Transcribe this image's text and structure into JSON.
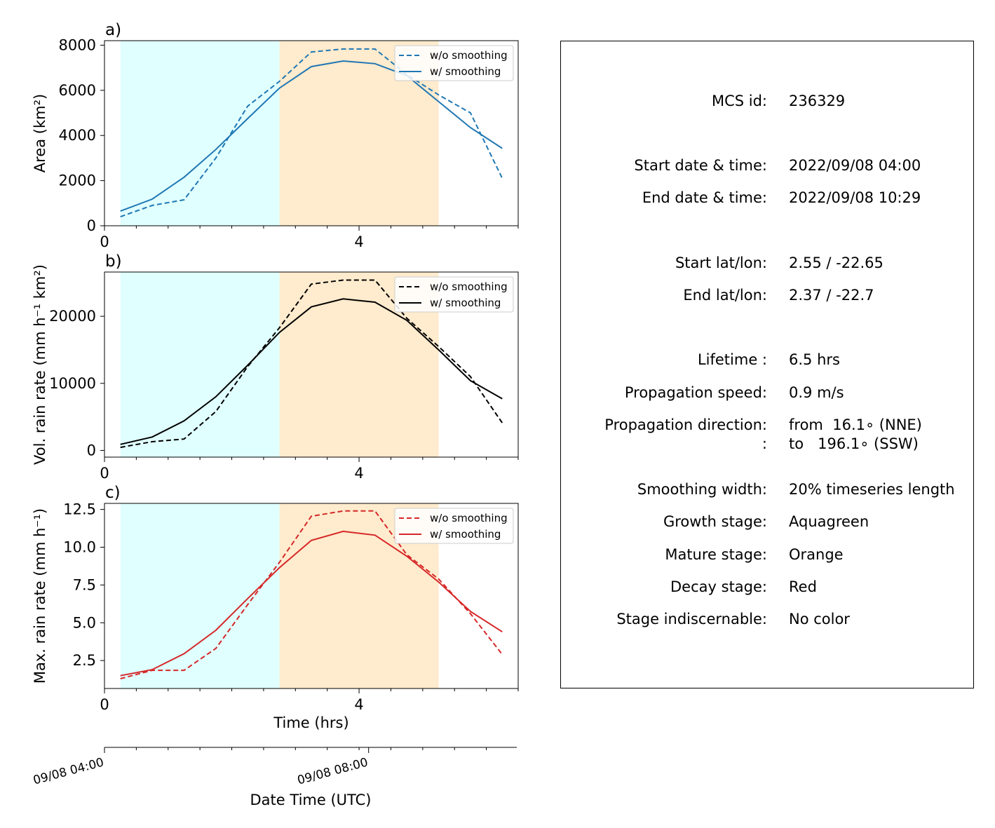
{
  "chart_data": [
    {
      "type": "line",
      "panel_label": "a)",
      "ylabel": "Area  (km²)",
      "xlim": [
        0,
        6.5
      ],
      "ylim": [
        0,
        8200
      ],
      "yticks": [
        0,
        2000,
        4000,
        6000,
        8000
      ],
      "xticks": [
        0,
        4
      ],
      "x": [
        0.25,
        0.75,
        1.25,
        1.75,
        2.25,
        2.75,
        3.25,
        3.75,
        4.25,
        4.75,
        5.25,
        5.75,
        6.25
      ],
      "series": [
        {
          "name": "w/o smoothing",
          "style": "dashed",
          "color": "#1f77b4",
          "values": [
            400,
            900,
            1150,
            3000,
            5300,
            6400,
            7700,
            7830,
            7830,
            6700,
            5800,
            5000,
            2100
          ]
        },
        {
          "name": "w/ smoothing",
          "style": "solid",
          "color": "#1f77b4",
          "values": [
            650,
            1180,
            2150,
            3380,
            4750,
            6100,
            7050,
            7300,
            7180,
            6650,
            5500,
            4350,
            3430
          ]
        }
      ],
      "stages": [
        {
          "name": "growth",
          "x0": 0.25,
          "x1": 2.75,
          "color": "#e0ffff"
        },
        {
          "name": "mature",
          "x0": 2.75,
          "x1": 5.25,
          "color": "#ffebcd"
        }
      ],
      "legend": "top-right"
    },
    {
      "type": "line",
      "panel_label": "b)",
      "ylabel": "Vol. rain rate (mm h⁻¹ km²)",
      "xlim": [
        0,
        6.5
      ],
      "ylim": [
        -1000,
        26600
      ],
      "yticks": [
        0,
        10000,
        20000
      ],
      "xticks": [
        0,
        4
      ],
      "x": [
        0.25,
        0.75,
        1.25,
        1.75,
        2.25,
        2.75,
        3.25,
        3.75,
        4.25,
        4.75,
        5.25,
        5.75,
        6.25
      ],
      "series": [
        {
          "name": "w/o smoothing",
          "style": "dashed",
          "color": "#000000",
          "values": [
            450,
            1300,
            1700,
            5800,
            12500,
            18300,
            24800,
            25400,
            25400,
            19700,
            15500,
            11000,
            4100
          ]
        },
        {
          "name": "w/ smoothing",
          "style": "solid",
          "color": "#000000",
          "values": [
            900,
            2000,
            4400,
            8000,
            12700,
            17600,
            21400,
            22600,
            22100,
            19400,
            15000,
            10400,
            7700
          ]
        }
      ],
      "stages": [
        {
          "name": "growth",
          "x0": 0.25,
          "x1": 2.75,
          "color": "#e0ffff"
        },
        {
          "name": "mature",
          "x0": 2.75,
          "x1": 5.25,
          "color": "#ffebcd"
        }
      ],
      "legend": "top-right"
    },
    {
      "type": "line",
      "panel_label": "c)",
      "ylabel": "Max. rain rate  (mm h⁻¹)",
      "xlabel": "Time (hrs)",
      "xlim": [
        0,
        6.5
      ],
      "ylim": [
        0.65,
        12.9
      ],
      "yticks": [
        2.5,
        5.0,
        7.5,
        10.0,
        12.5
      ],
      "ytick_labels": [
        "2.5",
        "5.0",
        "7.5",
        "10.0",
        "12.5"
      ],
      "xticks": [
        0,
        4
      ],
      "x": [
        0.25,
        0.75,
        1.25,
        1.75,
        2.25,
        2.75,
        3.25,
        3.75,
        4.25,
        4.75,
        5.25,
        5.75,
        6.25
      ],
      "series": [
        {
          "name": "w/o smoothing",
          "style": "dashed",
          "color": "#d62728",
          "values": [
            1.3,
            1.85,
            1.85,
            3.3,
            6.2,
            9.0,
            12.05,
            12.4,
            12.4,
            9.5,
            7.9,
            5.6,
            2.9
          ]
        },
        {
          "name": "w/ smoothing",
          "style": "solid",
          "color": "#d62728",
          "values": [
            1.5,
            1.9,
            2.95,
            4.5,
            6.6,
            8.65,
            10.45,
            11.05,
            10.8,
            9.4,
            7.7,
            5.75,
            4.4
          ]
        }
      ],
      "stages": [
        {
          "name": "growth",
          "x0": 0.25,
          "x1": 2.75,
          "color": "#e0ffff"
        },
        {
          "name": "mature",
          "x0": 2.75,
          "x1": 5.25,
          "color": "#ffebcd"
        }
      ],
      "legend": "top-right"
    },
    {
      "type": "line",
      "role": "secondary-time-axis",
      "xlabel": "Date Time (UTC)",
      "xlim": [
        0,
        6.5
      ],
      "major_ticks": [
        {
          "x": 0,
          "label": "09/08 04:00"
        },
        {
          "x": 4.15,
          "label": "09/08 08:00"
        }
      ]
    }
  ],
  "info": {
    "rows": [
      {
        "label": "MCS id:",
        "value": "236329"
      },
      {
        "label": "Start date & time:",
        "value": "2022/09/08 04:00"
      },
      {
        "label": "End date & time:",
        "value": "2022/09/08 10:29"
      },
      {
        "label": "Start lat/lon:",
        "value": "2.55 / -22.65"
      },
      {
        "label": "End lat/lon:",
        "value": "2.37 / -22.7"
      },
      {
        "label": "Lifetime :",
        "value": "6.5 hrs"
      },
      {
        "label": "Propagation speed:",
        "value": "0.9 m/s"
      },
      {
        "label": "Propagation direction:",
        "value": "from  16.1∘ (NNE)"
      },
      {
        "label": ":",
        "value": "to   196.1∘ (SSW)"
      },
      {
        "label": "Smoothing width:",
        "value": "20% timeseries length"
      },
      {
        "label": "Growth stage:",
        "value": "Aquagreen"
      },
      {
        "label": "Mature stage:",
        "value": "Orange"
      },
      {
        "label": "Decay stage:",
        "value": "Red"
      },
      {
        "label": "Stage indiscernable:",
        "value": "No color"
      }
    ]
  }
}
